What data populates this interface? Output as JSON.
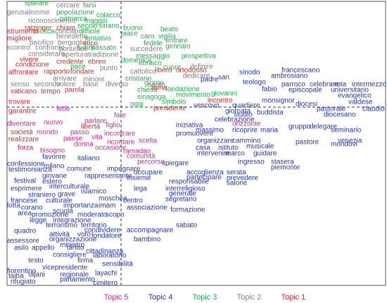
{
  "chart_data": {
    "type": "scatter",
    "xlim": [
      -162,
      376
    ],
    "ylim": [
      -253,
      150
    ],
    "legend": "bottom",
    "series": [
      {
        "name": "Topic 5",
        "color": "#e0239b",
        "labels": [
          "diventare",
          "mondo",
          "passo",
          "parlare",
          "fede",
          "paese",
          "donna",
          "vita",
          "fare",
          "bisogno",
          "nuovo",
          "figlio",
          "percorso",
          "ramadan",
          "comunità",
          "occasione",
          "incontrare",
          "ricordare",
          "orizzonte",
          "scelta"
        ],
        "x": [
          -162,
          -120,
          -72,
          -52,
          -92,
          -82,
          -67,
          -42,
          -10,
          -115,
          -110,
          -22,
          23,
          3,
          8,
          -37,
          -24,
          -20,
          158,
          25
        ],
        "y": [
          -24,
          -36,
          -36,
          -20,
          -3,
          -45,
          -53,
          -43,
          -12,
          -62,
          -22,
          -26,
          -78,
          -63,
          -70,
          -58,
          -38,
          -50,
          -24,
          -48
        ]
      },
      {
        "name": "Topic 4",
        "color": "#2233cc",
        "labels": [
          "francescano",
          "sinodo",
          "ambrosiano",
          "san",
          "teologo",
          "padre",
          "parroco",
          "celebrare",
          "rota",
          "intermezzo",
          "universitario",
          "evangelico",
          "fabio",
          "episcopale",
          "vescovo",
          "quartiere",
          "monsignor",
          "diocesi",
          "pastorale",
          "giornata",
          "studio",
          "buddista",
          "celebrazione",
          "claudio",
          "diocesano",
          "valdese",
          "gruppo",
          "delegare",
          "seminario",
          "venezia",
          "pastore",
          "mondovi",
          "promuovere",
          "massimo",
          "ricoprire",
          "maria",
          "iniziativa",
          "organizzare",
          "cammino",
          "musicale",
          "casa",
          "istituto",
          "intervenire",
          "marco",
          "guidare",
          "ingresso",
          "stasera",
          "piemonte",
          "serata",
          "prevedere",
          "salone",
          "spiegare",
          "accoglienza",
          "partecipare",
          "occupare",
          "insieme",
          "responsabile",
          "interreligioso",
          "lega",
          "generale",
          "segretario",
          "centro",
          "formazione",
          "associazione",
          "sabato",
          "accompagnare",
          "bambino",
          "confessione",
          "testimonianza",
          "favorire",
          "italiano",
          "milano",
          "comune",
          "giovane",
          "rappresentante",
          "impegnare",
          "festival",
          "estero",
          "interculturale",
          "esprimere",
          "straniero",
          "islamico",
          "grave",
          "moschea",
          "francese",
          "culturale",
          "importanza",
          "lotta",
          "corano",
          "imam",
          "scuola",
          "area",
          "promozione",
          "moderato",
          "scopo",
          "legge",
          "integrazione",
          "terrorismo",
          "territorio",
          "quadro",
          "attività",
          "condividere",
          "voto",
          "fondatore",
          "organizzazione",
          "ministro",
          "assessore",
          "asilo",
          "appello",
          "diritto",
          "cittadinanza",
          "consigliere",
          "laboratorio",
          "testo",
          "firma",
          "sensibilità",
          "vicepresidente",
          "fiorentino",
          "taiba",
          "tajani",
          "regionale",
          "layachi",
          "rifugiato",
          "parlamento",
          "cimitero"
        ],
        "x": [
          228,
          168,
          213,
          138,
          173,
          113,
          228,
          268,
          303,
          328,
          298,
          308,
          200,
          238,
          103,
          158,
          200,
          248,
          278,
          148,
          160,
          193,
          133,
          343,
          288,
          323,
          238,
          268,
          298,
          308,
          248,
          298,
          78,
          106,
          158,
          198,
          78,
          108,
          158,
          178,
          106,
          138,
          108,
          148,
          188,
          166,
          213,
          213,
          150,
          150,
          150,
          58,
          93,
          93,
          18,
          8,
          68,
          63,
          18,
          68,
          63,
          3,
          70,
          8,
          78,
          8,
          18,
          -162,
          -160,
          -112,
          -62,
          -110,
          -77,
          -112,
          -52,
          -20,
          -152,
          -112,
          -102,
          -157,
          -132,
          -57,
          -90,
          -32,
          -157,
          -107,
          -82,
          -162,
          -142,
          -32,
          -97,
          -147,
          -127,
          -62,
          -22,
          -130,
          -97,
          -107,
          -57,
          -152,
          -102,
          -52,
          -62,
          -42,
          -102,
          -87,
          -162,
          -152,
          -127,
          -77,
          -50,
          -97,
          -40,
          -132,
          -62,
          -27,
          -112,
          -162,
          -160,
          -132,
          -87,
          -37,
          -157,
          -87,
          -40
        ],
        "y": [
          52,
          49,
          44,
          42,
          35,
          39,
          32,
          32,
          32,
          32,
          24,
          16,
          25,
          24,
          2,
          2,
          9,
          4,
          -3,
          -6,
          -11,
          -8,
          -18,
          -3,
          -11,
          7,
          -28,
          -28,
          -33,
          -48,
          -50,
          -53,
          -38,
          -33,
          -33,
          -33,
          -26,
          -48,
          -48,
          -56,
          -58,
          -58,
          -66,
          -66,
          -66,
          -78,
          -78,
          -86,
          -93,
          -101,
          -108,
          -80,
          -93,
          -100,
          -93,
          -101,
          -106,
          -116,
          -116,
          -123,
          -131,
          -133,
          -146,
          -143,
          -168,
          -175,
          -188,
          -81,
          -89,
          -71,
          -73,
          -84,
          -88,
          -98,
          -98,
          -88,
          -105,
          -106,
          -113,
          -116,
          -125,
          -120,
          -124,
          -130,
          -133,
          -133,
          -140,
          -140,
          -143,
          -140,
          -148,
          -151,
          -153,
          -153,
          -153,
          -161,
          -161,
          -168,
          -168,
          -176,
          -181,
          -175,
          -181,
          -183,
          -188,
          -196,
          -190,
          -200,
          -200,
          -200,
          -205,
          -210,
          -211,
          -218,
          -218,
          -223,
          -228,
          -233,
          -240,
          -238,
          -238,
          -236,
          -248,
          -245,
          -250
        ]
      },
      {
        "name": "Topic 3",
        "color": "#1db34a",
        "labels": [
          "sparare",
          "farsi",
          "popolazione",
          "patriarca",
          "colacco",
          "maggio",
          "secolo",
          "siriano",
          "mosca",
          "difficile",
          "tentativo",
          "sunni",
          "passato",
          "buono",
          "piace",
          "beato",
          "vigilia",
          "caro",
          "fedele",
          "entrare",
          "gennaio",
          "messaggio",
          "prospettiva",
          "domenica",
          "cuore",
          "ebraico",
          "pace",
          "cristiano",
          "chiesa",
          "santo",
          "fondazione",
          "sinagoga",
          "oggi",
          "simbolo",
          "movimento",
          "giovanni"
        ],
        "x": [
          -137,
          -54,
          -92,
          -87,
          -35,
          -52,
          -62,
          -32,
          -124,
          -60,
          -52,
          -62,
          -42,
          3,
          0,
          56,
          53,
          28,
          32,
          63,
          63,
          21,
          86,
          0,
          60,
          25,
          -72,
          6,
          23,
          38,
          63,
          23,
          13,
          58,
          78,
          128
        ],
        "y": [
          147,
          144,
          134,
          125,
          130,
          122,
          115,
          115,
          107,
          107,
          97,
          84,
          84,
          112,
          104,
          110,
          100,
          100,
          90,
          94,
          86,
          72,
          72,
          66,
          56,
          62,
          57,
          40,
          24,
          31,
          25,
          14,
          4,
          7,
          17,
          19
        ]
      },
      {
        "name": "Topic 2",
        "color": "#7f7f7f",
        "labels": [
          "gerusalemme",
          "cercare",
          "riconoscimento",
          "concilio",
          "benedetto",
          "pacifico",
          "bergoglio",
          "scontro",
          "confronto",
          "pontefice",
          "considerare",
          "apertura",
          "tradizione",
          "arrivare",
          "minore",
          "senso",
          "secondo",
          "volere",
          "base",
          "diverso",
          "succedere",
          "punto",
          "definire",
          "dedicare",
          "giorno",
          "cattolico"
        ],
        "x": [
          -162,
          -92,
          -132,
          -94,
          -92,
          -130,
          -90,
          -162,
          -122,
          -88,
          -132,
          -84,
          -47,
          -97,
          -54,
          -157,
          -124,
          -92,
          -54,
          -22,
          13,
          -30,
          98,
          88,
          33,
          13
        ],
        "y": [
          134,
          144,
          122,
          107,
          100,
          91,
          91,
          84,
          84,
          82,
          75,
          74,
          74,
          40,
          39,
          32,
          32,
          32,
          32,
          32,
          82,
          55,
          57,
          44,
          34,
          50
        ]
      },
      {
        "name": "Topic 1",
        "color": "#e3262c",
        "labels": [
          "ratzinger",
          "chiaro",
          "strumento",
          "migliore",
          "etico",
          "vivere",
          "credente",
          "ebreo",
          "condizione",
          "affrontare",
          "rapporto",
          "fondare",
          "vaticano",
          "tempo",
          "parola",
          "trovare",
          "garantire",
          "società",
          "realizzare",
          "forza",
          "libertà",
          "libero",
          "ortodosso",
          "tema",
          "presidente",
          "incontro"
        ],
        "x": [
          -137,
          -92,
          -162,
          -162,
          -54,
          -144,
          -92,
          -47,
          -150,
          -160,
          -110,
          -72,
          -157,
          -114,
          -80,
          -160,
          -160,
          -157,
          -160,
          -147,
          -57,
          48,
          78,
          43,
          46,
          123
        ],
        "y": [
          112,
          112,
          107,
          97,
          90,
          67,
          64,
          64,
          60,
          49,
          50,
          50,
          22,
          22,
          24,
          7,
          -6,
          -36,
          -46,
          -58,
          -28,
          52,
          52,
          27,
          -2,
          9
        ]
      }
    ]
  }
}
